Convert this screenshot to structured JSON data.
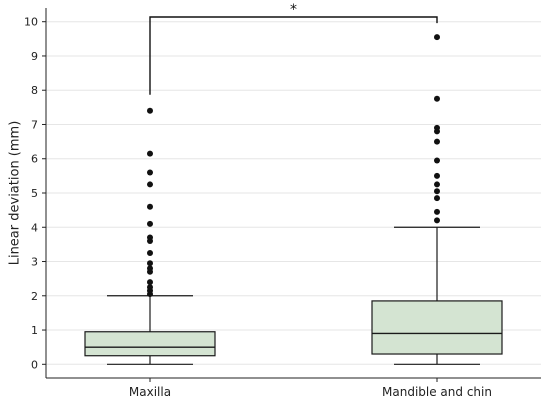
{
  "chart_data": {
    "type": "box",
    "title": "",
    "xlabel": "",
    "ylabel": "Linear deviation (mm)",
    "ylim": [
      -0.4,
      10.4
    ],
    "yticks": [
      0,
      1,
      2,
      3,
      4,
      5,
      6,
      7,
      8,
      9,
      10
    ],
    "grid": "horizontal",
    "box_fill": "#d4e4d2",
    "box_stroke": "#1a1a1a",
    "categories": [
      "Maxilla",
      "Mandible and chin"
    ],
    "boxes": [
      {
        "category": "Maxilla",
        "whisker_low": 0.0,
        "q1": 0.25,
        "median": 0.5,
        "q3": 0.95,
        "whisker_high": 2.0,
        "outliers": [
          2.05,
          2.15,
          2.25,
          2.4,
          2.7,
          2.8,
          2.95,
          3.25,
          3.6,
          3.7,
          4.1,
          4.6,
          5.25,
          5.6,
          6.15,
          7.4
        ]
      },
      {
        "category": "Mandible and chin",
        "whisker_low": 0.0,
        "q1": 0.3,
        "median": 0.9,
        "q3": 1.85,
        "whisker_high": 4.0,
        "outliers": [
          4.2,
          4.45,
          4.85,
          5.05,
          5.25,
          5.5,
          5.95,
          6.5,
          6.8,
          6.9,
          7.75,
          9.55
        ]
      }
    ],
    "significance": {
      "label": "*",
      "y": 10.4,
      "from": "Maxilla",
      "to": "Mandible and chin"
    }
  }
}
